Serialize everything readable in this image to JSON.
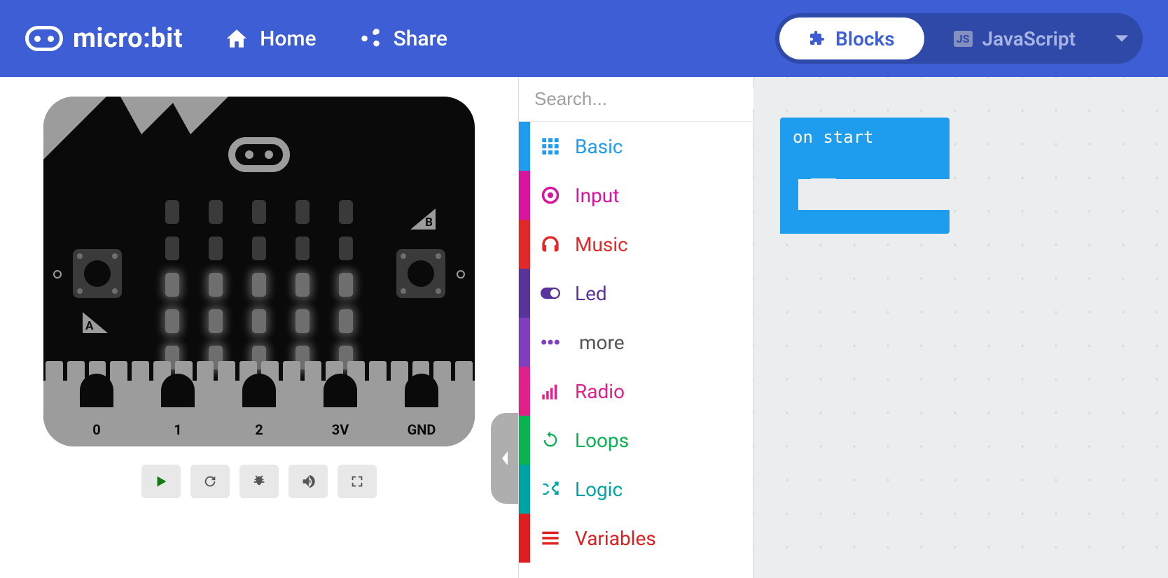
{
  "header": {
    "logo_text": "micro:bit",
    "nav": {
      "home": "Home",
      "share": "Share"
    },
    "editor_toggle": {
      "blocks": "Blocks",
      "javascript": "JavaScript",
      "js_badge": "JS"
    },
    "accent_color": "#3e5ed6"
  },
  "simulator": {
    "pins": [
      "0",
      "1",
      "2",
      "3V",
      "GND"
    ],
    "buttons": {
      "a": "A",
      "b": "B"
    },
    "led_pattern": [
      [
        0,
        0,
        0,
        0,
        0
      ],
      [
        0,
        0,
        0,
        0,
        0
      ],
      [
        1,
        1,
        1,
        1,
        1
      ],
      [
        1,
        1,
        1,
        1,
        1
      ],
      [
        1,
        1,
        1,
        1,
        1
      ]
    ],
    "controls": [
      "play",
      "restart",
      "debug",
      "audio",
      "fullscreen"
    ]
  },
  "toolbox": {
    "search_placeholder": "Search...",
    "categories": [
      {
        "key": "basic",
        "label": "Basic",
        "color": "#1e9cee",
        "icon": "grid"
      },
      {
        "key": "input",
        "label": "Input",
        "color": "#d9159f",
        "icon": "target"
      },
      {
        "key": "music",
        "label": "Music",
        "color": "#e2292a",
        "icon": "headphones"
      },
      {
        "key": "led",
        "label": "Led",
        "color": "#59359b",
        "icon": "toggle"
      },
      {
        "key": "more",
        "label": "more",
        "color": "#7f3fbf",
        "icon": "dots"
      },
      {
        "key": "radio",
        "label": "Radio",
        "color": "#e0218a",
        "icon": "signal"
      },
      {
        "key": "loops",
        "label": "Loops",
        "color": "#09b351",
        "icon": "redo"
      },
      {
        "key": "logic",
        "label": "Logic",
        "color": "#00a3a3",
        "icon": "shuffle"
      },
      {
        "key": "variables",
        "label": "Variables",
        "color": "#df1f1f",
        "icon": "lines"
      }
    ]
  },
  "workspace": {
    "background": "#ecedef",
    "block": {
      "label": "on start",
      "color": "#1e9cee"
    }
  }
}
